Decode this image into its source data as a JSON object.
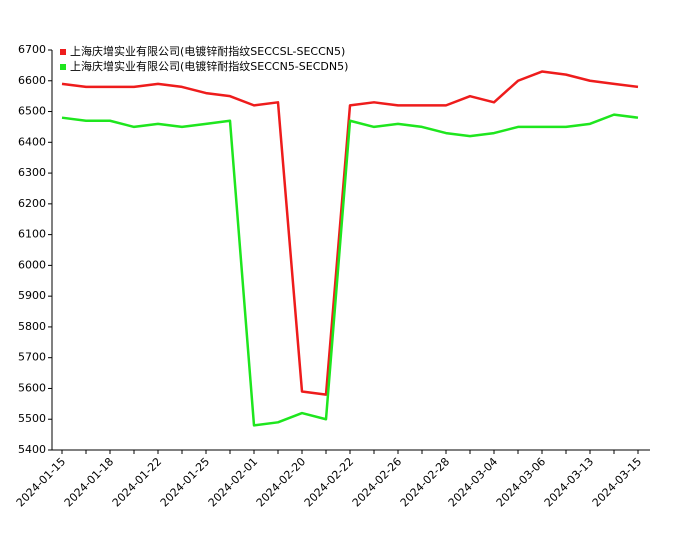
{
  "chart_data": {
    "type": "line",
    "categories": [
      "2024-01-15",
      null,
      "2024-01-18",
      null,
      "2024-01-22",
      null,
      "2024-01-25",
      null,
      "2024-02-01",
      null,
      "2024-02-20",
      null,
      "2024-02-22",
      null,
      "2024-02-26",
      null,
      "2024-02-28",
      null,
      "2024-03-04",
      null,
      "2024-03-06",
      null,
      "2024-03-13",
      null,
      "2024-03-15"
    ],
    "series": [
      {
        "name": "上海庆增实业有限公司(电镀锌耐指纹SECCSL-SECCN5)",
        "color": "#ee1c1c",
        "values": [
          6590,
          6580,
          6580,
          6580,
          6590,
          6580,
          6560,
          6550,
          6520,
          6530,
          5590,
          5580,
          6520,
          6530,
          6520,
          6520,
          6520,
          6550,
          6530,
          6600,
          6630,
          6620,
          6600,
          6590,
          6580
        ]
      },
      {
        "name": "上海庆增实业有限公司(电镀锌耐指纹SECCN5-SECDN5)",
        "color": "#1ee61e",
        "values": [
          6480,
          6470,
          6470,
          6450,
          6460,
          6450,
          6460,
          6470,
          5480,
          5490,
          5520,
          5500,
          6470,
          6450,
          6460,
          6450,
          6430,
          6420,
          6430,
          6450,
          6450,
          6450,
          6460,
          6490,
          6480
        ]
      }
    ],
    "ylim": [
      5400,
      6700
    ],
    "yticks": [
      5400,
      5500,
      5600,
      5700,
      5800,
      5900,
      6000,
      6100,
      6200,
      6300,
      6400,
      6500,
      6600,
      6700
    ],
    "grid": false,
    "legend": "upper-left"
  }
}
